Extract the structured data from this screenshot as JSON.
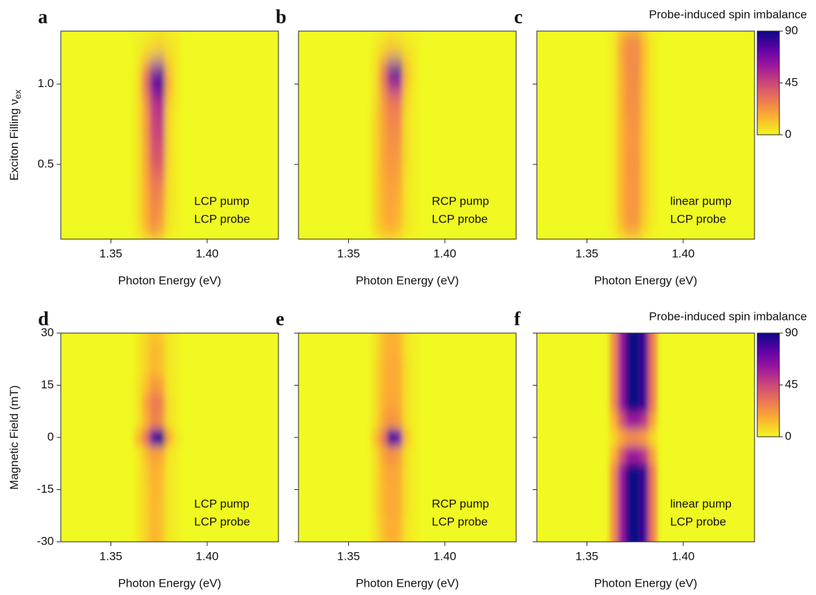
{
  "chart_data": [
    {
      "type": "heatmap",
      "panel_label": "a",
      "xlabel": "Photon Energy (eV)",
      "ylabel": "Exciton Filling ν",
      "ylabel_sub": "ex",
      "annotations": [
        "LCP pump",
        "LCP probe"
      ],
      "x": [
        1.364,
        1.368,
        1.372,
        1.376,
        1.38,
        1.384
      ],
      "y": [
        0.1,
        0.2,
        0.3,
        0.4,
        0.5,
        0.6,
        0.7,
        0.8,
        0.9,
        1.0,
        1.1,
        1.2,
        1.3
      ],
      "z": [
        [
          5,
          15,
          25,
          20,
          5,
          2
        ],
        [
          5,
          15,
          25,
          22,
          5,
          2
        ],
        [
          5,
          15,
          28,
          25,
          6,
          2
        ],
        [
          5,
          16,
          30,
          30,
          6,
          2
        ],
        [
          5,
          18,
          38,
          40,
          8,
          2
        ],
        [
          5,
          18,
          40,
          42,
          8,
          2
        ],
        [
          5,
          20,
          44,
          48,
          8,
          2
        ],
        [
          5,
          20,
          46,
          50,
          8,
          2
        ],
        [
          5,
          22,
          50,
          56,
          10,
          3
        ],
        [
          6,
          35,
          75,
          90,
          20,
          4
        ],
        [
          4,
          25,
          60,
          70,
          12,
          3
        ],
        [
          2,
          5,
          8,
          10,
          6,
          3
        ],
        [
          2,
          3,
          5,
          6,
          4,
          3
        ]
      ],
      "xlim": [
        1.324,
        1.437
      ],
      "xticks": [
        1.35,
        {
          "value": 1.4,
          "label": "1.40"
        }
      ],
      "ylim": [
        0.035,
        1.33
      ],
      "yticks": [
        0.5,
        {
          "value": 1.0,
          "label": "1.0"
        }
      ],
      "clim": [
        0,
        90
      ],
      "colormap": [
        "#f0f921",
        "#fdb32f",
        "#ed7953",
        "#cc4778",
        "#9c179e",
        "#5c01a6",
        "#0d0887"
      ]
    },
    {
      "type": "heatmap",
      "panel_label": "b",
      "xlabel": "Photon Energy (eV)",
      "annotations": [
        "RCP pump",
        "LCP probe"
      ],
      "x": [
        1.364,
        1.368,
        1.372,
        1.376,
        1.38,
        1.384
      ],
      "y": [
        0.1,
        0.2,
        0.3,
        0.4,
        0.5,
        0.6,
        0.7,
        0.8,
        0.9,
        1.0,
        1.1,
        1.2,
        1.3
      ],
      "z": [
        [
          8,
          15,
          18,
          14,
          5,
          2
        ],
        [
          8,
          15,
          18,
          14,
          5,
          2
        ],
        [
          8,
          16,
          20,
          16,
          5,
          2
        ],
        [
          8,
          16,
          20,
          18,
          5,
          2
        ],
        [
          8,
          18,
          22,
          20,
          6,
          2
        ],
        [
          8,
          18,
          24,
          22,
          6,
          2
        ],
        [
          8,
          18,
          25,
          24,
          6,
          2
        ],
        [
          8,
          20,
          28,
          26,
          6,
          2
        ],
        [
          6,
          20,
          30,
          30,
          8,
          2
        ],
        [
          6,
          28,
          55,
          60,
          12,
          3
        ],
        [
          6,
          30,
          75,
          85,
          15,
          4
        ],
        [
          3,
          8,
          12,
          10,
          5,
          3
        ],
        [
          2,
          4,
          6,
          5,
          3,
          2
        ]
      ],
      "xlim": [
        1.324,
        1.437
      ],
      "xticks": [
        1.35,
        {
          "value": 1.4,
          "label": "1.40"
        }
      ],
      "ylim": [
        0.035,
        1.33
      ],
      "yticks": [
        0.5,
        {
          "value": 1.0,
          "label": "1.0"
        }
      ],
      "clim": [
        0,
        90
      ],
      "colormap": [
        "#f0f921",
        "#fdb32f",
        "#ed7953",
        "#cc4778",
        "#9c179e",
        "#5c01a6",
        "#0d0887"
      ]
    },
    {
      "type": "heatmap",
      "panel_label": "c",
      "xlabel": "Photon Energy (eV)",
      "annotations": [
        "linear pump",
        "LCP probe"
      ],
      "x": [
        1.364,
        1.368,
        1.372,
        1.376,
        1.38,
        1.384
      ],
      "y": [
        0.1,
        0.2,
        0.3,
        0.4,
        0.5,
        0.6,
        0.7,
        0.8,
        0.9,
        1.0,
        1.1,
        1.2,
        1.3
      ],
      "z": [
        [
          4,
          14,
          22,
          20,
          8,
          3
        ],
        [
          4,
          15,
          22,
          22,
          10,
          3
        ],
        [
          4,
          15,
          22,
          22,
          10,
          3
        ],
        [
          4,
          15,
          22,
          22,
          10,
          3
        ],
        [
          4,
          15,
          23,
          22,
          10,
          3
        ],
        [
          4,
          15,
          22,
          22,
          10,
          3
        ],
        [
          4,
          15,
          22,
          22,
          10,
          3
        ],
        [
          4,
          15,
          23,
          23,
          10,
          3
        ],
        [
          4,
          16,
          24,
          24,
          11,
          3
        ],
        [
          4,
          16,
          24,
          24,
          11,
          3
        ],
        [
          4,
          17,
          25,
          25,
          12,
          3
        ],
        [
          4,
          18,
          25,
          25,
          12,
          3
        ],
        [
          4,
          18,
          25,
          25,
          12,
          3
        ]
      ],
      "xlim": [
        1.324,
        1.437
      ],
      "xticks": [
        1.35,
        {
          "value": 1.4,
          "label": "1.40"
        }
      ],
      "ylim": [
        0.035,
        1.33
      ],
      "yticks": [
        0.5,
        {
          "value": 1.0,
          "label": "1.0"
        }
      ],
      "clim": [
        0,
        90
      ],
      "colormap": [
        "#f0f921",
        "#fdb32f",
        "#ed7953",
        "#cc4778",
        "#9c179e",
        "#5c01a6",
        "#0d0887"
      ],
      "colorbar": {
        "title": "Probe-induced spin imbalance",
        "ticks": [
          0,
          45,
          90
        ]
      }
    },
    {
      "type": "heatmap",
      "panel_label": "d",
      "xlabel": "Photon Energy (eV)",
      "ylabel": "Magnetic Field (mT)",
      "annotations": [
        "LCP pump",
        "LCP probe"
      ],
      "x": [
        1.364,
        1.368,
        1.372,
        1.376,
        1.38,
        1.384
      ],
      "y": [
        -30,
        -25,
        -20,
        -15,
        -10,
        -5,
        0,
        5,
        10,
        15,
        20,
        25,
        30
      ],
      "z": [
        [
          3,
          8,
          15,
          12,
          4,
          2
        ],
        [
          3,
          8,
          14,
          12,
          4,
          2
        ],
        [
          3,
          8,
          15,
          12,
          4,
          2
        ],
        [
          3,
          8,
          15,
          13,
          4,
          2
        ],
        [
          3,
          9,
          16,
          14,
          4,
          2
        ],
        [
          3,
          12,
          20,
          18,
          5,
          2
        ],
        [
          12,
          30,
          75,
          90,
          18,
          4
        ],
        [
          4,
          15,
          28,
          25,
          6,
          2
        ],
        [
          4,
          18,
          30,
          28,
          6,
          2
        ],
        [
          4,
          12,
          22,
          20,
          5,
          2
        ],
        [
          3,
          8,
          15,
          12,
          4,
          2
        ],
        [
          3,
          8,
          14,
          12,
          4,
          2
        ],
        [
          3,
          7,
          12,
          10,
          4,
          2
        ]
      ],
      "xlim": [
        1.324,
        1.437
      ],
      "xticks": [
        1.35,
        {
          "value": 1.4,
          "label": "1.40"
        }
      ],
      "ylim": [
        -30,
        30
      ],
      "yticks": [
        -30,
        -15,
        0,
        15,
        30
      ],
      "clim": [
        0,
        90
      ],
      "colormap": [
        "#f0f921",
        "#fdb32f",
        "#ed7953",
        "#cc4778",
        "#9c179e",
        "#5c01a6",
        "#0d0887"
      ]
    },
    {
      "type": "heatmap",
      "panel_label": "e",
      "xlabel": "Photon Energy (eV)",
      "annotations": [
        "RCP pump",
        "LCP probe"
      ],
      "x": [
        1.364,
        1.368,
        1.372,
        1.376,
        1.38,
        1.384
      ],
      "y": [
        -30,
        -25,
        -20,
        -15,
        -10,
        -5,
        0,
        5,
        10,
        15,
        20,
        25,
        30
      ],
      "z": [
        [
          5,
          12,
          16,
          14,
          5,
          2
        ],
        [
          5,
          13,
          17,
          15,
          5,
          2
        ],
        [
          6,
          14,
          18,
          16,
          6,
          2
        ],
        [
          6,
          14,
          18,
          16,
          6,
          2
        ],
        [
          6,
          15,
          19,
          17,
          6,
          2
        ],
        [
          6,
          18,
          24,
          20,
          6,
          2
        ],
        [
          12,
          30,
          80,
          70,
          12,
          3
        ],
        [
          6,
          18,
          24,
          20,
          6,
          2
        ],
        [
          6,
          15,
          19,
          17,
          6,
          2
        ],
        [
          6,
          14,
          18,
          16,
          6,
          2
        ],
        [
          6,
          14,
          18,
          16,
          6,
          2
        ],
        [
          5,
          13,
          17,
          15,
          5,
          2
        ],
        [
          5,
          12,
          16,
          14,
          5,
          2
        ]
      ],
      "xlim": [
        1.324,
        1.437
      ],
      "xticks": [
        1.35,
        {
          "value": 1.4,
          "label": "1.40"
        }
      ],
      "ylim": [
        -30,
        30
      ],
      "yticks": [
        -30,
        -15,
        0,
        15,
        30
      ],
      "clim": [
        0,
        90
      ],
      "colormap": [
        "#f0f921",
        "#fdb32f",
        "#ed7953",
        "#cc4778",
        "#9c179e",
        "#5c01a6",
        "#0d0887"
      ]
    },
    {
      "type": "heatmap",
      "panel_label": "f",
      "xlabel": "Photon Energy (eV)",
      "annotations": [
        "linear pump",
        "LCP probe"
      ],
      "x": [
        1.364,
        1.368,
        1.372,
        1.376,
        1.38,
        1.384
      ],
      "y": [
        -30,
        -25,
        -20,
        -15,
        -10,
        -5,
        0,
        5,
        10,
        15,
        20,
        25,
        30
      ],
      "z": [
        [
          25,
          60,
          90,
          90,
          80,
          30
        ],
        [
          25,
          60,
          90,
          90,
          80,
          30
        ],
        [
          25,
          60,
          90,
          90,
          80,
          30
        ],
        [
          25,
          60,
          90,
          90,
          80,
          30
        ],
        [
          25,
          60,
          90,
          90,
          80,
          30
        ],
        [
          15,
          40,
          60,
          60,
          50,
          20
        ],
        [
          8,
          18,
          25,
          25,
          20,
          8
        ],
        [
          15,
          40,
          60,
          60,
          50,
          20
        ],
        [
          25,
          60,
          90,
          90,
          80,
          30
        ],
        [
          25,
          60,
          90,
          90,
          80,
          30
        ],
        [
          25,
          60,
          90,
          90,
          80,
          30
        ],
        [
          25,
          60,
          90,
          90,
          80,
          30
        ],
        [
          25,
          60,
          90,
          90,
          80,
          30
        ]
      ],
      "xlim": [
        1.324,
        1.437
      ],
      "xticks": [
        1.35,
        {
          "value": 1.4,
          "label": "1.40"
        }
      ],
      "ylim": [
        -30,
        30
      ],
      "yticks": [
        -30,
        -15,
        0,
        15,
        30
      ],
      "clim": [
        0,
        90
      ],
      "colormap": [
        "#f0f921",
        "#fdb32f",
        "#ed7953",
        "#cc4778",
        "#9c179e",
        "#5c01a6",
        "#0d0887"
      ],
      "colorbar": {
        "title": "Probe-induced spin imbalance",
        "ticks": [
          0,
          45,
          90
        ]
      }
    }
  ]
}
